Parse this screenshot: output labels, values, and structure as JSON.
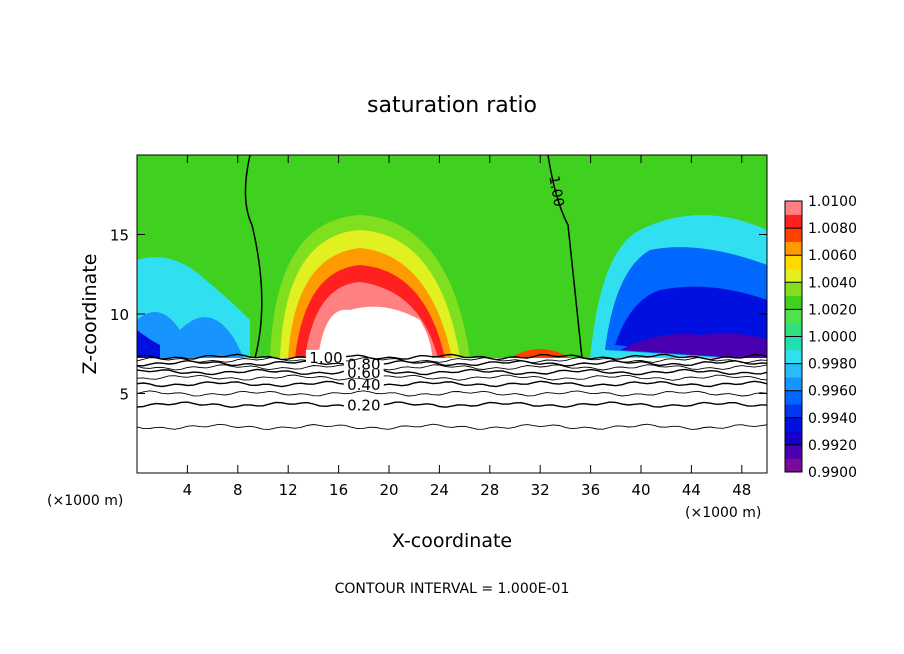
{
  "chart_data": {
    "type": "contour",
    "title": "saturation ratio",
    "x_label": "X-coordinate",
    "y_label": "Z-coordinate",
    "x_unit": "(×1000 m)",
    "y_unit": "(×1000 m)",
    "xlim": [
      0,
      50
    ],
    "xticks": [
      4,
      8,
      12,
      16,
      20,
      24,
      28,
      32,
      36,
      40,
      44,
      48
    ],
    "ylim": [
      0,
      20
    ],
    "yticks": [
      5,
      10,
      15
    ],
    "colorbar": {
      "lim": [
        0.99,
        1.01
      ],
      "ticks": [
        {
          "value": 0.99,
          "label": "0.9900"
        },
        {
          "value": 0.992,
          "label": "0.9920"
        },
        {
          "value": 0.994,
          "label": "0.9940"
        },
        {
          "value": 0.996,
          "label": "0.9960"
        },
        {
          "value": 0.998,
          "label": "0.9980"
        },
        {
          "value": 1.0,
          "label": "1.0000"
        },
        {
          "value": 1.002,
          "label": "1.0020"
        },
        {
          "value": 1.004,
          "label": "1.0040"
        },
        {
          "value": 1.006,
          "label": "1.0060"
        },
        {
          "value": 1.008,
          "label": "1.0080"
        },
        {
          "value": 1.01,
          "label": "1.0100"
        }
      ],
      "colors": [
        "#7a0a9a",
        "#4a00b0",
        "#1400c8",
        "#0010e0",
        "#0038f0",
        "#0068ff",
        "#1894ff",
        "#28bcff",
        "#30e0f0",
        "#20e0b0",
        "#30e080",
        "#50e050",
        "#40d020",
        "#80e020",
        "#e0f020",
        "#ffd800",
        "#ff9a00",
        "#ff4000",
        "#ff2020",
        "#ff8080"
      ]
    },
    "contours": [
      {
        "level": 0.1,
        "z": 2.9
      },
      {
        "level": {
          "value": 0.2,
          "label": "0.20"
        },
        "z": 4.3
      },
      {
        "level": 0.3,
        "z": 5.0
      },
      {
        "level": {
          "value": 0.4,
          "label": "0.40"
        },
        "z": 5.6
      },
      {
        "level": 0.5,
        "z": 6.0
      },
      {
        "level": {
          "value": 0.6,
          "label": "0.60"
        },
        "z": 6.35
      },
      {
        "level": 0.7,
        "z": 6.65
      },
      {
        "level": {
          "value": 0.8,
          "label": "0.80"
        },
        "z": 6.9
      },
      {
        "level": 0.9,
        "z": 7.1
      },
      {
        "level": {
          "value": 1.0,
          "label": "1.00"
        },
        "z": 7.3
      }
    ],
    "field_label": {
      "value": 1.0,
      "label": "1.00"
    },
    "footer": "CONTOUR INTERVAL = 1.000E-01"
  }
}
